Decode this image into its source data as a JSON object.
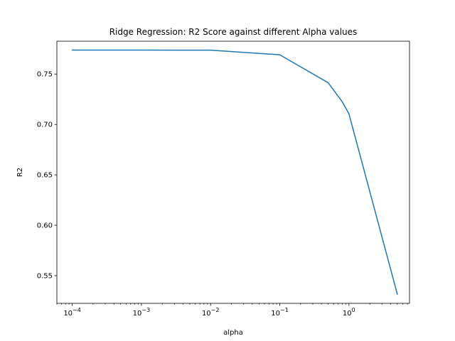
{
  "chart_data": {
    "type": "line",
    "title": "Ridge Regression: R2 Score against different Alpha values",
    "xlabel": "alpha",
    "ylabel": "R2",
    "xscale": "log",
    "xlim": [
      6e-05,
      7.5
    ],
    "ylim": [
      0.5225,
      0.7826
    ],
    "x_ticks": [
      {
        "value": 0.0001,
        "base": "10",
        "exp": "−4"
      },
      {
        "value": 0.001,
        "base": "10",
        "exp": "−3"
      },
      {
        "value": 0.01,
        "base": "10",
        "exp": "−2"
      },
      {
        "value": 0.1,
        "base": "10",
        "exp": "−1"
      },
      {
        "value": 1,
        "base": "10",
        "exp": "0"
      }
    ],
    "y_ticks": [
      {
        "value": 0.55,
        "label": "0.55"
      },
      {
        "value": 0.6,
        "label": "0.60"
      },
      {
        "value": 0.65,
        "label": "0.65"
      },
      {
        "value": 0.7,
        "label": "0.70"
      },
      {
        "value": 0.75,
        "label": "0.75"
      }
    ],
    "grid": false,
    "series": [
      {
        "color": "#1f77b4",
        "x": [
          0.0001,
          0.001,
          0.01,
          0.1,
          0.5,
          0.8,
          1,
          5
        ],
        "y": [
          0.7738,
          0.7738,
          0.7737,
          0.7691,
          0.7414,
          0.7225,
          0.7105,
          0.5316
        ]
      }
    ]
  }
}
